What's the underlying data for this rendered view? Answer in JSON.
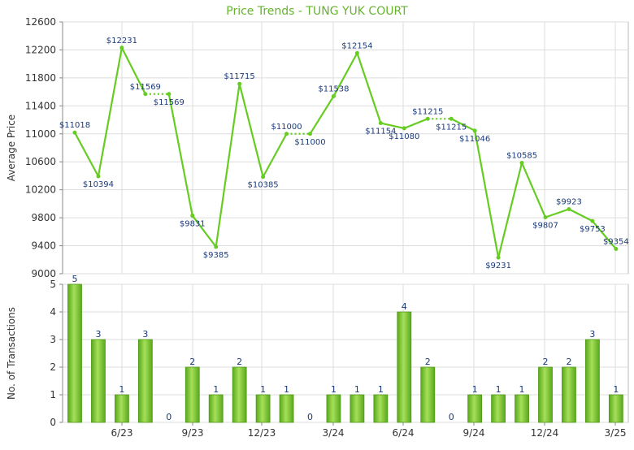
{
  "chart_data": [
    {
      "type": "line",
      "title": "Price Trends - TUNG YUK COURT",
      "ylabel": "Average Price",
      "ylim": [
        9000,
        12600
      ],
      "yticks": [
        9000,
        9400,
        9800,
        10200,
        10600,
        11000,
        11400,
        11800,
        12200,
        12600
      ],
      "x_tick_labels": [
        "6/23",
        "9/23",
        "12/23",
        "3/24",
        "6/24",
        "9/24",
        "12/24",
        "3/25"
      ],
      "grid": true,
      "color": "#66cc22",
      "points": [
        {
          "x": 0,
          "y": 11018,
          "label": "$11018"
        },
        {
          "x": 1,
          "y": 10394,
          "label": "$10394"
        },
        {
          "x": 2,
          "y": 12231,
          "label": "$12231"
        },
        {
          "x": 3,
          "y": 11569,
          "label": "$11569"
        },
        {
          "x": 4,
          "y": 11569,
          "label": "$11569"
        },
        {
          "x": 5,
          "y": 9831,
          "label": "$9831"
        },
        {
          "x": 6,
          "y": 9385,
          "label": "$9385"
        },
        {
          "x": 7,
          "y": 11715,
          "label": "$11715"
        },
        {
          "x": 8,
          "y": 10385,
          "label": "$10385"
        },
        {
          "x": 9,
          "y": 11000,
          "label": "$11000"
        },
        {
          "x": 10,
          "y": 11000,
          "label": "$11000"
        },
        {
          "x": 11,
          "y": 11538,
          "label": "$11538"
        },
        {
          "x": 12,
          "y": 12154,
          "label": "$12154"
        },
        {
          "x": 13,
          "y": 11154,
          "label": "$11154"
        },
        {
          "x": 14,
          "y": 11080,
          "label": "$11080"
        },
        {
          "x": 15,
          "y": 11215,
          "label": "$11215"
        },
        {
          "x": 16,
          "y": 11215,
          "label": "$11215"
        },
        {
          "x": 17,
          "y": 11046,
          "label": "$11046"
        },
        {
          "x": 18,
          "y": 9231,
          "label": "$9231"
        },
        {
          "x": 19,
          "y": 10585,
          "label": "$10585"
        },
        {
          "x": 20,
          "y": 9807,
          "label": "$9807"
        },
        {
          "x": 21,
          "y": 9923,
          "label": "$9923"
        },
        {
          "x": 22,
          "y": 9753,
          "label": "$9753"
        },
        {
          "x": 23,
          "y": 9354,
          "label": "$9354"
        }
      ]
    },
    {
      "type": "bar",
      "ylabel": "No. of Transactions",
      "ylim": [
        0,
        5
      ],
      "yticks": [
        0,
        1,
        2,
        3,
        4,
        5
      ],
      "x_tick_labels": [
        "6/23",
        "9/23",
        "12/23",
        "3/24",
        "6/24",
        "9/24",
        "12/24",
        "3/25"
      ],
      "grid": true,
      "color": "#7ccc2e",
      "values": [
        5,
        3,
        1,
        3,
        0,
        2,
        1,
        2,
        1,
        1,
        0,
        1,
        1,
        1,
        4,
        2,
        0,
        1,
        1,
        1,
        2,
        2,
        3,
        1
      ]
    }
  ]
}
